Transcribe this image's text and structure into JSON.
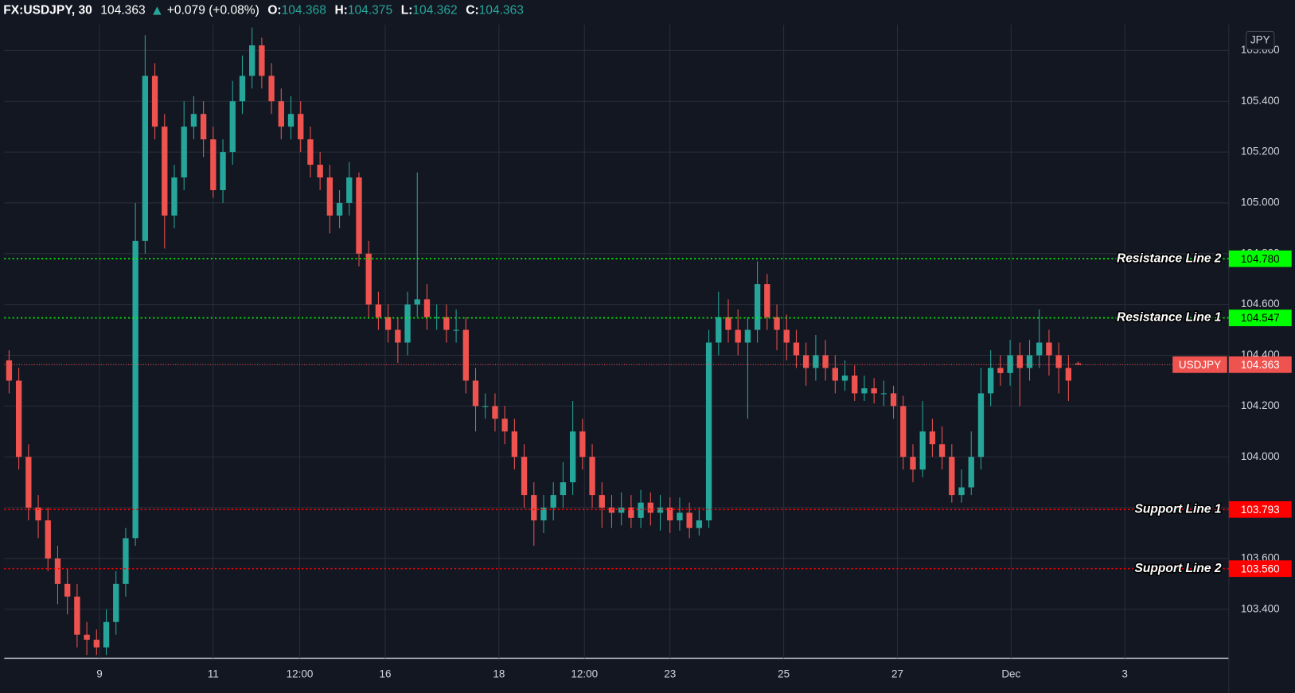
{
  "chart_data": {
    "type": "candlestick",
    "symbol": "FX:USDJPY, 30",
    "change": "+0.079 (+0.08%)",
    "ohlc_labels": [
      "O:",
      "H:",
      "L:",
      "C:"
    ],
    "currency": "JPY",
    "up_color": "#26a69a",
    "down_color": "#ef5350",
    "grid": true,
    "open": [
      104.38,
      104.3,
      104.0,
      103.8,
      103.75,
      103.6,
      103.5,
      103.45,
      103.3,
      103.28,
      103.25,
      103.35,
      103.5,
      103.68,
      104.85,
      105.5,
      105.3,
      104.95,
      105.1,
      105.3,
      105.35,
      105.25,
      105.05,
      105.2,
      105.4,
      105.5,
      105.62,
      105.5,
      105.4,
      105.3,
      105.35,
      105.25,
      105.15,
      105.1,
      104.95,
      105.0,
      105.1,
      104.8,
      104.6,
      104.55,
      104.5,
      104.45,
      104.6,
      104.62,
      104.55,
      104.55,
      104.5,
      104.5,
      104.3,
      104.2,
      104.2,
      104.15,
      104.1,
      104.0,
      103.85,
      103.75,
      103.8,
      103.85,
      103.9,
      104.1,
      104.0,
      103.85,
      103.8,
      103.78,
      103.8,
      103.76,
      103.82,
      103.78,
      103.8,
      103.75,
      103.78,
      103.72,
      103.75,
      104.45,
      104.55,
      104.5,
      104.45,
      104.5,
      104.68,
      104.55,
      104.5,
      104.45,
      104.4,
      104.35,
      104.4,
      104.35,
      104.3,
      104.32,
      104.25,
      104.27,
      104.25,
      104.25,
      104.2,
      104.0,
      103.95,
      104.1,
      104.05,
      104.0,
      103.85,
      103.88,
      104.0,
      104.25,
      104.35,
      104.33,
      104.4,
      104.35,
      104.4,
      104.45,
      104.4,
      104.35,
      104.368
    ],
    "high": [
      104.42,
      104.35,
      104.05,
      103.85,
      103.8,
      103.65,
      103.56,
      103.5,
      103.35,
      103.32,
      103.4,
      103.55,
      103.72,
      105.0,
      105.66,
      105.55,
      105.35,
      105.15,
      105.4,
      105.42,
      105.4,
      105.3,
      105.25,
      105.48,
      105.58,
      105.69,
      105.65,
      105.55,
      105.45,
      105.42,
      105.4,
      105.3,
      105.2,
      105.15,
      105.05,
      105.16,
      105.12,
      104.85,
      104.65,
      104.6,
      104.55,
      104.65,
      105.12,
      104.68,
      104.6,
      104.6,
      104.58,
      104.55,
      104.35,
      104.25,
      104.25,
      104.2,
      104.15,
      104.05,
      103.9,
      103.85,
      103.9,
      103.98,
      104.22,
      104.15,
      104.05,
      103.9,
      103.85,
      103.86,
      103.85,
      103.87,
      103.86,
      103.85,
      103.84,
      103.84,
      103.82,
      103.8,
      104.5,
      104.65,
      104.62,
      104.58,
      104.55,
      104.77,
      104.72,
      104.6,
      104.56,
      104.5,
      104.45,
      104.48,
      104.46,
      104.4,
      104.38,
      104.36,
      104.32,
      104.31,
      104.3,
      104.28,
      104.24,
      104.05,
      104.22,
      104.15,
      104.12,
      104.05,
      103.95,
      104.1,
      104.35,
      104.42,
      104.4,
      104.46,
      104.45,
      104.46,
      104.58,
      104.5,
      104.45,
      104.4,
      104.375
    ],
    "low": [
      104.25,
      103.95,
      103.75,
      103.68,
      103.55,
      103.42,
      103.38,
      103.25,
      103.22,
      103.22,
      103.22,
      103.3,
      103.45,
      103.65,
      104.8,
      105.25,
      104.82,
      104.9,
      105.05,
      105.25,
      105.18,
      105.02,
      105.0,
      105.15,
      105.35,
      105.45,
      105.45,
      105.35,
      105.25,
      105.25,
      105.2,
      105.1,
      105.05,
      104.88,
      104.9,
      104.95,
      104.75,
      104.55,
      104.5,
      104.45,
      104.37,
      104.4,
      104.55,
      104.5,
      104.5,
      104.45,
      104.45,
      104.25,
      104.1,
      104.15,
      104.1,
      104.05,
      103.95,
      103.8,
      103.65,
      103.7,
      103.75,
      103.8,
      103.85,
      103.95,
      103.8,
      103.72,
      103.72,
      103.73,
      103.72,
      103.72,
      103.73,
      103.71,
      103.7,
      103.71,
      103.68,
      103.69,
      103.72,
      104.4,
      104.45,
      104.4,
      104.15,
      104.45,
      104.5,
      104.42,
      104.38,
      104.35,
      104.28,
      104.3,
      104.3,
      104.25,
      104.26,
      104.22,
      104.22,
      104.21,
      104.2,
      104.15,
      103.95,
      103.9,
      103.92,
      104.0,
      103.95,
      103.82,
      103.82,
      103.85,
      103.95,
      104.2,
      104.28,
      104.28,
      104.2,
      104.3,
      104.35,
      104.32,
      104.25,
      104.22,
      104.362
    ],
    "close": [
      104.3,
      104.0,
      103.8,
      103.75,
      103.6,
      103.5,
      103.45,
      103.3,
      103.28,
      103.25,
      103.35,
      103.5,
      103.68,
      104.85,
      105.5,
      105.3,
      104.95,
      105.1,
      105.3,
      105.35,
      105.25,
      105.05,
      105.2,
      105.4,
      105.5,
      105.62,
      105.5,
      105.4,
      105.3,
      105.35,
      105.25,
      105.15,
      105.1,
      104.95,
      105.0,
      105.1,
      104.8,
      104.6,
      104.55,
      104.5,
      104.45,
      104.6,
      104.62,
      104.55,
      104.55,
      104.5,
      104.5,
      104.3,
      104.2,
      104.2,
      104.15,
      104.1,
      104.0,
      103.85,
      103.75,
      103.8,
      103.85,
      103.9,
      104.1,
      104.0,
      103.85,
      103.8,
      103.78,
      103.8,
      103.76,
      103.82,
      103.78,
      103.8,
      103.75,
      103.78,
      103.72,
      103.75,
      104.45,
      104.55,
      104.5,
      104.45,
      104.5,
      104.68,
      104.55,
      104.5,
      104.45,
      104.4,
      104.35,
      104.4,
      104.35,
      104.3,
      104.32,
      104.25,
      104.27,
      104.25,
      104.25,
      104.2,
      104.0,
      103.95,
      104.1,
      104.05,
      104.0,
      103.85,
      103.88,
      104.0,
      104.25,
      104.35,
      104.33,
      104.4,
      104.35,
      104.4,
      104.45,
      104.4,
      104.35,
      104.3,
      104.363
    ],
    "xlim": [
      0,
      126
    ],
    "xticks": [
      {
        "value": 9.8,
        "label": "9"
      },
      {
        "value": 21.5,
        "label": "11"
      },
      {
        "value": 30.4,
        "label": "12:00"
      },
      {
        "value": 39.2,
        "label": "16"
      },
      {
        "value": 50.9,
        "label": "18"
      },
      {
        "value": 59.7,
        "label": "12:00"
      },
      {
        "value": 68.5,
        "label": "23"
      },
      {
        "value": 80.2,
        "label": "25"
      },
      {
        "value": 91.9,
        "label": "27"
      },
      {
        "value": 103.6,
        "label": "Dec"
      },
      {
        "value": 115.3,
        "label": "3"
      }
    ],
    "ylim": [
      103.207,
      105.701
    ],
    "yticks": [
      {
        "value": 103.4,
        "label": "103.400"
      },
      {
        "value": 103.6,
        "label": "103.600"
      },
      {
        "value": 103.8,
        "label": "103.800"
      },
      {
        "value": 104,
        "label": "104.000"
      },
      {
        "value": 104.2,
        "label": "104.200"
      },
      {
        "value": 104.4,
        "label": "104.400"
      },
      {
        "value": 104.6,
        "label": "104.600"
      },
      {
        "value": 104.8,
        "label": "104.800"
      },
      {
        "value": 105,
        "label": "105.000"
      },
      {
        "value": 105.2,
        "label": "105.200"
      },
      {
        "value": 105.4,
        "label": "105.400"
      },
      {
        "value": 105.6,
        "label": "105.600"
      }
    ],
    "price_line": {
      "name": "USDJPY",
      "color": "#ef5350"
    },
    "levels": [
      {
        "name": "Resistance Line 2",
        "value": 104.78,
        "label": "104.780",
        "color": "#00ff00"
      },
      {
        "name": "Resistance Line 1",
        "value": 104.547,
        "label": "104.547",
        "color": "#00ff00"
      },
      {
        "name": "Support Line 1",
        "value": 103.793,
        "label": "103.793",
        "color": "#ff0000"
      },
      {
        "name": "Support Line 2",
        "value": 103.56,
        "label": "103.560",
        "color": "#ff0000"
      }
    ]
  }
}
